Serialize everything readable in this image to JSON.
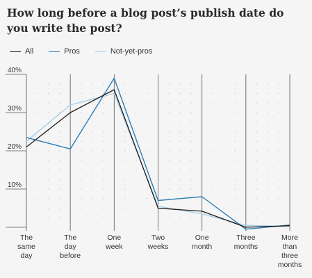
{
  "chart_data": {
    "type": "line",
    "title": "How long before a blog post’s publish date do you write the post?",
    "categories": [
      [
        "The",
        "same",
        "day"
      ],
      [
        "The",
        "day",
        "before"
      ],
      [
        "One",
        "week"
      ],
      [
        "Two",
        "weeks"
      ],
      [
        "One",
        "month"
      ],
      [
        "Three",
        "months"
      ],
      [
        "More",
        "than",
        "three",
        "months"
      ]
    ],
    "series": [
      {
        "name": "All",
        "color": "#1b1b1b",
        "values": [
          21,
          30,
          36,
          5,
          4.2,
          0,
          0.4
        ]
      },
      {
        "name": "Pros",
        "color": "#2b7cb6",
        "values": [
          23.5,
          20.5,
          39,
          7,
          8,
          -0.5,
          0.6
        ]
      },
      {
        "name": "Not-yet-pros",
        "color": "#a9cfe6",
        "values": [
          22.5,
          32,
          35,
          5.5,
          3.5,
          0.5,
          0.3
        ]
      }
    ],
    "ylim": [
      0,
      40
    ],
    "yticks": [
      10,
      20,
      30,
      40
    ],
    "ytick_labels": [
      "10%",
      "20%",
      "30%",
      "40%"
    ],
    "grid": true,
    "legend_position": "top-left"
  }
}
